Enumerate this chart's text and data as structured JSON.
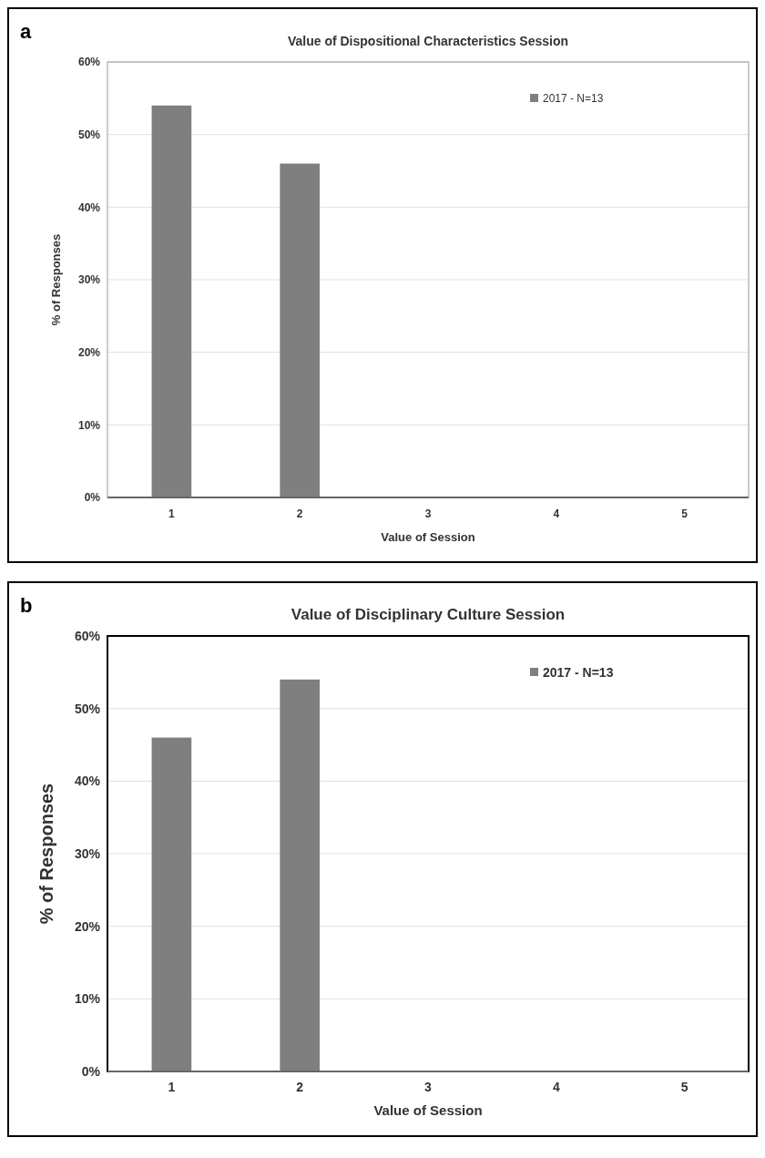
{
  "chart_data": [
    {
      "type": "bar",
      "title": "Value of Dispositional Characteristics Session",
      "annotations": [
        "a"
      ],
      "xlabel": "Value of Session",
      "ylabel": "% of Responses",
      "categories": [
        "1",
        "2",
        "3",
        "4",
        "5"
      ],
      "series": [
        {
          "name": "2017 - N=13",
          "color": "#7f7f7f",
          "values": [
            54,
            46,
            0,
            0,
            0
          ]
        }
      ],
      "ylim": [
        0,
        60
      ],
      "yticks": [
        {
          "value": 0,
          "label": "0%"
        },
        {
          "value": 10,
          "label": "10%"
        },
        {
          "value": 20,
          "label": "20%"
        },
        {
          "value": 30,
          "label": "30%"
        },
        {
          "value": 40,
          "label": "40%"
        },
        {
          "value": 50,
          "label": "50%"
        },
        {
          "value": 60,
          "label": "60%"
        }
      ],
      "grid": "y",
      "legend": "top right"
    },
    {
      "type": "bar",
      "title": "Value of Disciplinary Culture Session",
      "annotations": [
        "b"
      ],
      "xlabel": "Value of Session",
      "ylabel": "% of Responses",
      "categories": [
        "1",
        "2",
        "3",
        "4",
        "5"
      ],
      "series": [
        {
          "name": "2017 - N=13",
          "color": "#7f7f7f",
          "values": [
            46,
            54,
            0,
            0,
            0
          ]
        }
      ],
      "ylim": [
        0,
        60
      ],
      "yticks": [
        {
          "value": 0,
          "label": "0%"
        },
        {
          "value": 10,
          "label": "10%"
        },
        {
          "value": 20,
          "label": "20%"
        },
        {
          "value": 30,
          "label": "30%"
        },
        {
          "value": 40,
          "label": "40%"
        },
        {
          "value": 50,
          "label": "50%"
        },
        {
          "value": 60,
          "label": "60%"
        }
      ],
      "grid": "y",
      "legend": "top right"
    }
  ]
}
